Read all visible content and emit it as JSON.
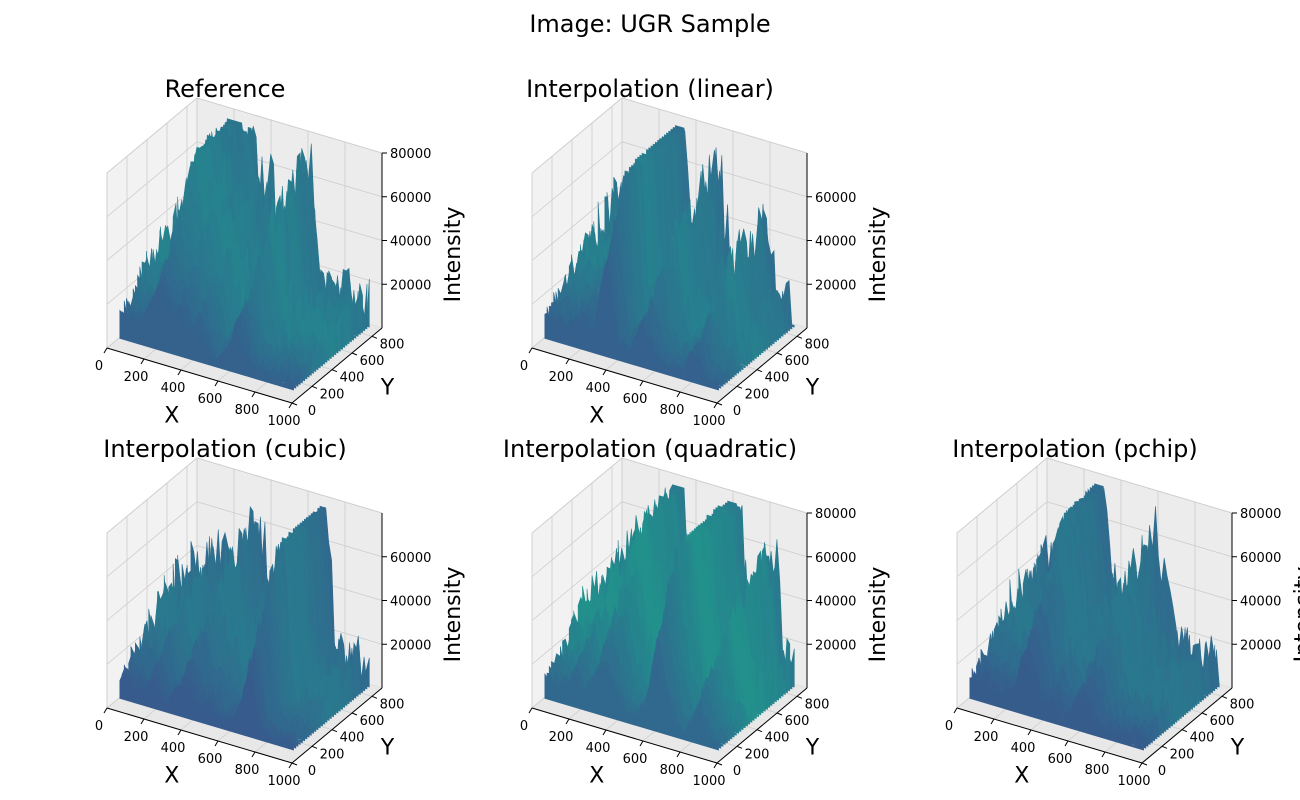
{
  "figure_title": "Image: UGR Sample",
  "chart_data": [
    {
      "type": "surface3d",
      "title": "Reference",
      "xlabel": "X",
      "ylabel": "Y",
      "zlabel": "Intensity",
      "x_ticks": [
        "0",
        "200",
        "400",
        "600",
        "800",
        "1000"
      ],
      "y_ticks": [
        "0",
        "200",
        "400",
        "600",
        "800"
      ],
      "z_ticks": [
        "20000",
        "40000",
        "60000",
        "80000"
      ],
      "xlim": [
        0,
        1000
      ],
      "ylim": [
        0,
        900
      ],
      "zlim": [
        0,
        80000
      ],
      "colormap": "viridis"
    },
    {
      "type": "surface3d",
      "title": "Interpolation (linear)",
      "xlabel": "X",
      "ylabel": "Y",
      "zlabel": "Intensity",
      "x_ticks": [
        "0",
        "200",
        "400",
        "600",
        "800",
        "1000"
      ],
      "y_ticks": [
        "0",
        "200",
        "400",
        "600",
        "800"
      ],
      "z_ticks": [
        "20000",
        "40000",
        "60000"
      ],
      "xlim": [
        0,
        1000
      ],
      "ylim": [
        0,
        900
      ],
      "zlim": [
        0,
        80000
      ],
      "colormap": "viridis"
    },
    {
      "type": "surface3d",
      "title": "Interpolation (cubic)",
      "xlabel": "X",
      "ylabel": "Y",
      "zlabel": "Intensity",
      "x_ticks": [
        "0",
        "200",
        "400",
        "600",
        "800",
        "1000"
      ],
      "y_ticks": [
        "0",
        "200",
        "400",
        "600",
        "800"
      ],
      "z_ticks": [
        "20000",
        "40000",
        "60000"
      ],
      "xlim": [
        0,
        1000
      ],
      "ylim": [
        0,
        900
      ],
      "zlim": [
        0,
        80000
      ],
      "colormap": "viridis"
    },
    {
      "type": "surface3d",
      "title": "Interpolation (quadratic)",
      "xlabel": "X",
      "ylabel": "Y",
      "zlabel": "Intensity",
      "x_ticks": [
        "0",
        "200",
        "400",
        "600",
        "800",
        "1000"
      ],
      "y_ticks": [
        "0",
        "200",
        "400",
        "600",
        "800"
      ],
      "z_ticks": [
        "20000",
        "40000",
        "60000",
        "80000"
      ],
      "xlim": [
        0,
        1000
      ],
      "ylim": [
        0,
        900
      ],
      "zlim": [
        0,
        80000
      ],
      "colormap": "viridis"
    },
    {
      "type": "surface3d",
      "title": "Interpolation (pchip)",
      "xlabel": "X",
      "ylabel": "Y",
      "zlabel": "Intensity",
      "x_ticks": [
        "0",
        "200",
        "400",
        "600",
        "800",
        "1000"
      ],
      "y_ticks": [
        "0",
        "200",
        "400",
        "600",
        "800"
      ],
      "z_ticks": [
        "20000",
        "40000",
        "60000",
        "80000"
      ],
      "xlim": [
        0,
        1000
      ],
      "ylim": [
        0,
        900
      ],
      "zlim": [
        0,
        80000
      ],
      "colormap": "viridis"
    }
  ]
}
